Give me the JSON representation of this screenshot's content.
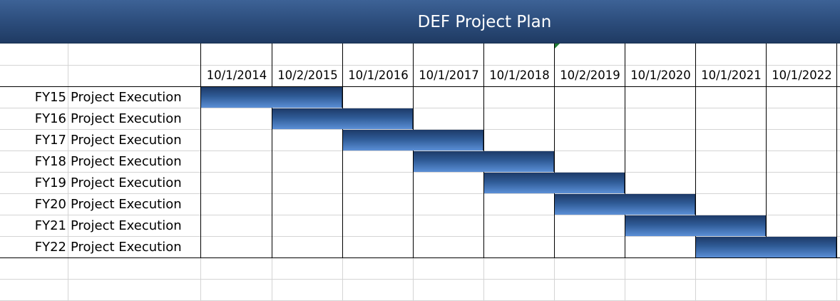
{
  "title": "DEF Project Plan",
  "colors": {
    "header": "#2c4d7c",
    "bar": "#3a6ab0",
    "grid": "#d4d4d4"
  },
  "chart_data": {
    "type": "gantt",
    "title": "DEF Project Plan",
    "timeline": [
      "10/1/2014",
      "10/2/2015",
      "10/1/2016",
      "10/1/2017",
      "10/1/2018",
      "10/2/2019",
      "10/1/2020",
      "10/1/2021",
      "10/1/2022"
    ],
    "tasks": [
      {
        "fy": "FY15",
        "name": "Project Execution",
        "start": "10/1/2014",
        "end": "10/1/2016"
      },
      {
        "fy": "FY16",
        "name": "Project Execution",
        "start": "10/2/2015",
        "end": "10/1/2017"
      },
      {
        "fy": "FY17",
        "name": "Project Execution",
        "start": "10/1/2016",
        "end": "10/1/2018"
      },
      {
        "fy": "FY18",
        "name": "Project Execution",
        "start": "10/1/2017",
        "end": "10/2/2019"
      },
      {
        "fy": "FY19",
        "name": "Project Execution",
        "start": "10/1/2018",
        "end": "10/1/2020"
      },
      {
        "fy": "FY20",
        "name": "Project Execution",
        "start": "10/2/2019",
        "end": "10/1/2021"
      },
      {
        "fy": "FY21",
        "name": "Project Execution",
        "start": "10/1/2020",
        "end": "10/1/2022"
      },
      {
        "fy": "FY22",
        "name": "Project Execution",
        "start": "10/1/2021",
        "end": "10/1/2023"
      }
    ]
  }
}
